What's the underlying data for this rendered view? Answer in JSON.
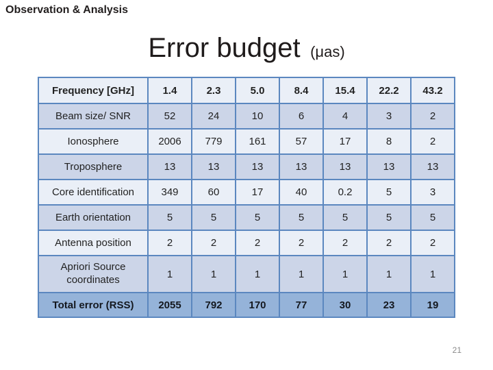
{
  "slide": {
    "eyebrow": "Observation & Analysis",
    "title": "Error budget",
    "title_unit": "(μas)",
    "page_number": "21"
  },
  "table": {
    "header": {
      "label": "Frequency [GHz]",
      "values": [
        "1.4",
        "2.3",
        "5.0",
        "8.4",
        "15.4",
        "22.2",
        "43.2"
      ]
    },
    "rows": [
      {
        "label": "Beam size/ SNR",
        "values": [
          "52",
          "24",
          "10",
          "6",
          "4",
          "3",
          "2"
        ]
      },
      {
        "label": "Ionosphere",
        "values": [
          "2006",
          "779",
          "161",
          "57",
          "17",
          "8",
          "2"
        ]
      },
      {
        "label": "Troposphere",
        "values": [
          "13",
          "13",
          "13",
          "13",
          "13",
          "13",
          "13"
        ]
      },
      {
        "label": "Core identification",
        "values": [
          "349",
          "60",
          "17",
          "40",
          "0.2",
          "5",
          "3"
        ]
      },
      {
        "label": "Earth orientation",
        "values": [
          "5",
          "5",
          "5",
          "5",
          "5",
          "5",
          "5"
        ]
      },
      {
        "label": "Antenna position",
        "values": [
          "2",
          "2",
          "2",
          "2",
          "2",
          "2",
          "2"
        ]
      },
      {
        "label": "Apriori Source coordinates",
        "values": [
          "1",
          "1",
          "1",
          "1",
          "1",
          "1",
          "1"
        ]
      }
    ],
    "total": {
      "label": "Total error (RSS)",
      "values": [
        "2055",
        "792",
        "170",
        "77",
        "30",
        "23",
        "19"
      ]
    }
  },
  "colors": {
    "accent": "#5b87bf",
    "border": "#5b87bf",
    "row_light": "#eaeff7",
    "row_band": "#ccd5e8",
    "row_total": "#95b3d9",
    "page_num": "#8a8a8a"
  }
}
